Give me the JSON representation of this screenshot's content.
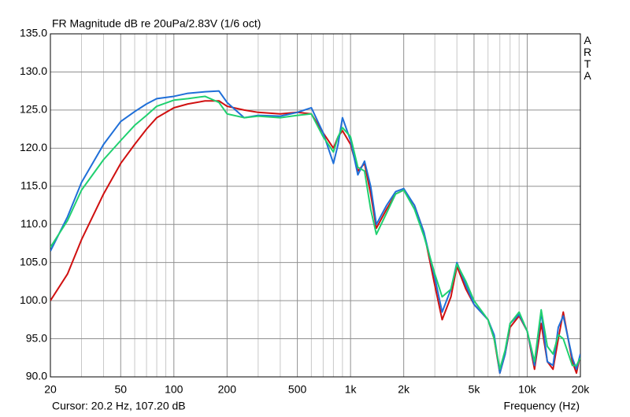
{
  "chart_data": {
    "type": "line",
    "title": "FR Magnitude dB re 20uPa/2.83V (1/6 oct)",
    "side_label": "ARTA",
    "cursor": "Cursor: 20.2 Hz, 107.20 dB",
    "x_label": "Frequency (Hz)",
    "x_scale": "log",
    "grid": true,
    "xlim": [
      20,
      20000
    ],
    "ylim": [
      90,
      135
    ],
    "xticks": [
      20,
      50,
      100,
      200,
      500,
      {
        "value": 1000,
        "label": "1k"
      },
      {
        "value": 2000,
        "label": "2k"
      },
      {
        "value": 5000,
        "label": "5k"
      },
      {
        "value": 10000,
        "label": "10k"
      },
      {
        "value": 20000,
        "label": "20k"
      }
    ],
    "xminor": [
      30,
      40,
      60,
      70,
      80,
      90,
      300,
      400,
      600,
      700,
      800,
      900,
      3000,
      4000,
      6000,
      7000,
      8000,
      9000
    ],
    "yticks": [
      {
        "value": 90,
        "label": "90.0"
      },
      {
        "value": 95,
        "label": "95.0"
      },
      {
        "value": 100,
        "label": "100.0"
      },
      {
        "value": 105,
        "label": "105.0"
      },
      {
        "value": 110,
        "label": "110.0"
      },
      {
        "value": 115,
        "label": "115.0"
      },
      {
        "value": 120,
        "label": "120.0"
      },
      {
        "value": 125,
        "label": "125.0"
      },
      {
        "value": 130,
        "label": "130.0"
      },
      {
        "value": 135,
        "label": "135.0"
      }
    ],
    "x": [
      20,
      25,
      30,
      40,
      50,
      60,
      70,
      80,
      100,
      120,
      150,
      180,
      200,
      250,
      300,
      400,
      500,
      600,
      700,
      800,
      850,
      900,
      1000,
      1100,
      1200,
      1300,
      1400,
      1600,
      1800,
      2000,
      2300,
      2600,
      3000,
      3300,
      3700,
      4000,
      4500,
      5000,
      6000,
      6500,
      7000,
      7500,
      8000,
      9000,
      10000,
      11000,
      12000,
      13000,
      14000,
      15000,
      16000,
      18000,
      19000,
      20000
    ],
    "series": [
      {
        "color": "#d01010",
        "values": [
          100,
          103.5,
          108,
          114,
          118,
          120.5,
          122.5,
          124,
          125.3,
          125.8,
          126.2,
          126.2,
          125.5,
          125,
          124.7,
          124.5,
          124.7,
          124.5,
          122,
          120,
          121.5,
          122.3,
          120.5,
          117,
          118,
          114,
          109.5,
          112,
          114,
          114.5,
          112.5,
          109,
          102,
          97.5,
          100.5,
          104.5,
          101.5,
          99.5,
          97.5,
          95,
          90.5,
          93,
          96.5,
          98,
          96,
          91,
          97,
          92,
          91,
          95,
          98.5,
          92,
          90.5,
          93
        ]
      },
      {
        "color": "#1f6fd8",
        "values": [
          106.5,
          111,
          115.5,
          120.5,
          123.5,
          124.8,
          125.8,
          126.5,
          126.8,
          127.2,
          127.4,
          127.5,
          126,
          124,
          124.3,
          124.2,
          124.7,
          125.3,
          122,
          118,
          120.5,
          124,
          121,
          116.5,
          118.3,
          115,
          110,
          112.5,
          114.3,
          114.7,
          112.5,
          109,
          103,
          98.5,
          101.5,
          105,
          102,
          99.5,
          97.5,
          95.5,
          90.5,
          93,
          97,
          98.2,
          96,
          91.5,
          98.5,
          92,
          91.5,
          96.5,
          98,
          92.5,
          91,
          93
        ]
      },
      {
        "color": "#20d070",
        "values": [
          107,
          110.5,
          114.5,
          118.5,
          121,
          123,
          124.3,
          125.5,
          126.3,
          126.5,
          126.8,
          126,
          124.5,
          124,
          124.2,
          124,
          124.3,
          124.5,
          121.5,
          119.5,
          121.5,
          122.7,
          121.5,
          117.5,
          117,
          112,
          108.7,
          111.5,
          114,
          114.5,
          112,
          108.5,
          103.5,
          100.5,
          101.5,
          104.8,
          102.5,
          100,
          97.5,
          95,
          91,
          93.5,
          97,
          98.5,
          96,
          92,
          98.8,
          94,
          93,
          95.5,
          95,
          91.5,
          91.5,
          92.5
        ]
      }
    ]
  }
}
